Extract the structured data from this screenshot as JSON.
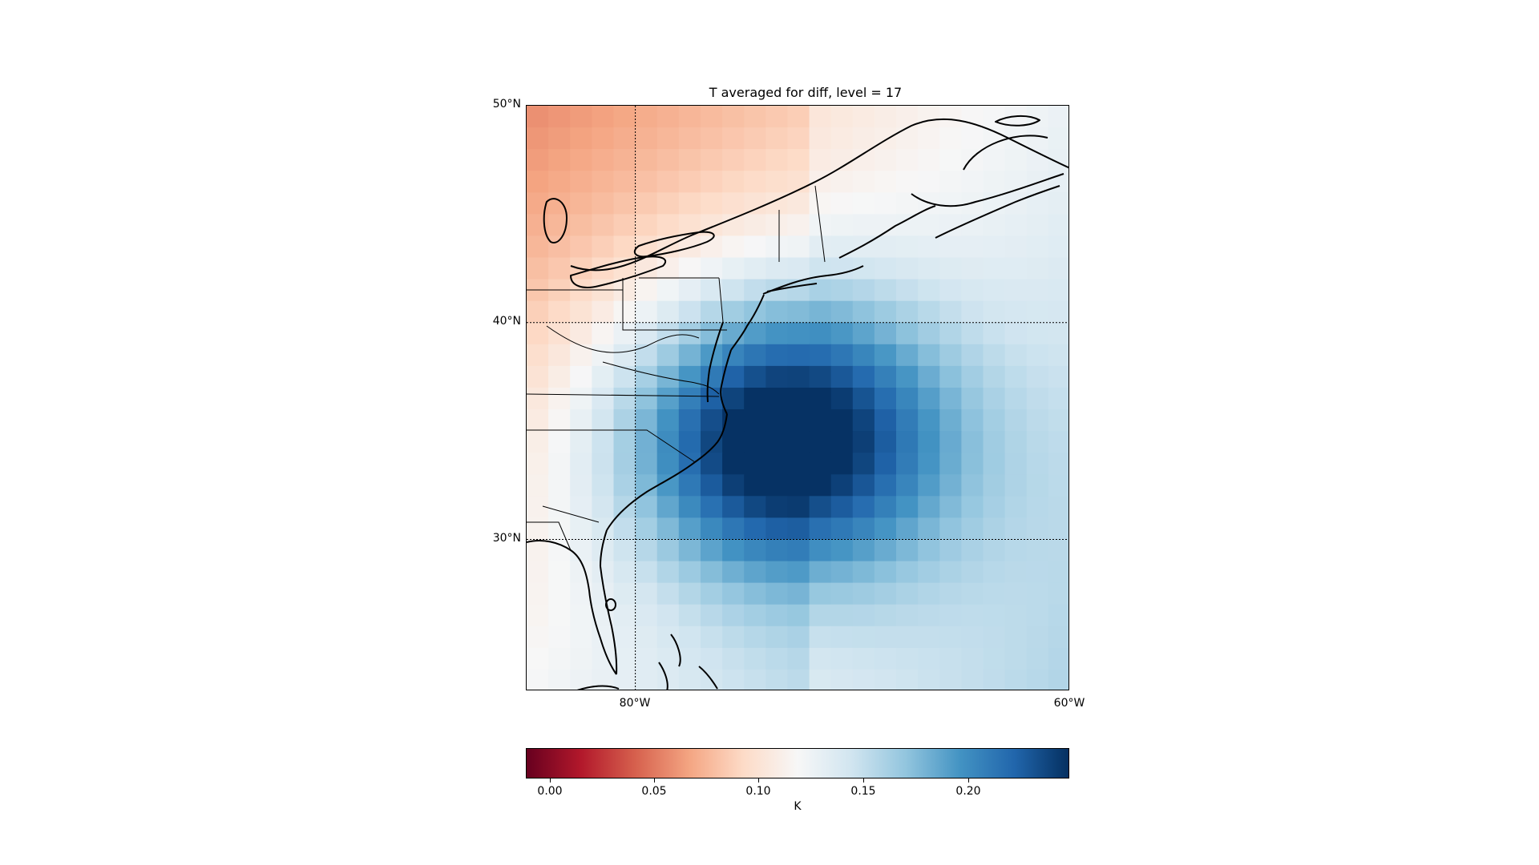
{
  "chart_data": {
    "type": "heatmap",
    "title": "T averaged for diff, level = 17",
    "lat_range": [
      23,
      50
    ],
    "lon_range": [
      -85,
      -60
    ],
    "lat_ticks": [
      "50°N",
      "40°N",
      "30°N"
    ],
    "lon_ticks": [
      "80°W",
      "60°W"
    ],
    "grid_lines": {
      "lat": [
        40,
        30
      ],
      "lon": [
        -80,
        -60
      ]
    },
    "colormap": "RdBu",
    "vmin": -0.011,
    "vmax": 0.246,
    "colorbar": {
      "label": "K",
      "ticks": [
        "0.00",
        "0.05",
        "0.10",
        "0.15",
        "0.20"
      ],
      "tick_values": [
        0.0,
        0.05,
        0.1,
        0.15,
        0.2
      ],
      "colors": [
        "#67001f",
        "#b2182b",
        "#d6604d",
        "#f4a582",
        "#fddbc7",
        "#f7f7f7",
        "#d1e5f0",
        "#92c5de",
        "#4393c3",
        "#2166ac",
        "#053061"
      ]
    },
    "field_center": {
      "lon": -73.3,
      "lat": 34.8,
      "value": 0.244
    },
    "field_approx": "smooth field, peak ~0.24 K off Carolinas coast, ~0.07 K in northwest corner, ~0.15 K in southeast corner"
  }
}
